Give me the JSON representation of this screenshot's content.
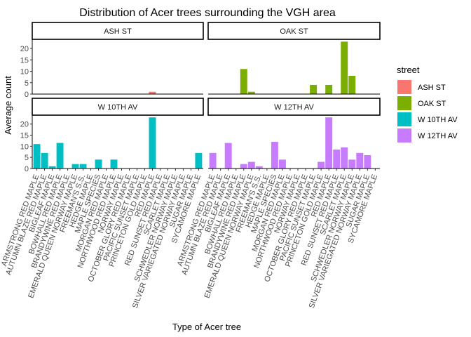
{
  "chart_data": {
    "type": "bar",
    "title": "Distribution of Acer trees surrounding the VGH area",
    "xlabel": "Type of Acer tree",
    "ylabel": "Average count",
    "ylim": [
      0,
      24
    ],
    "yticks": [
      0,
      5,
      10,
      15,
      20
    ],
    "grid": false,
    "legend": {
      "title": "street",
      "placement": "right",
      "entries": [
        {
          "name": "ASH ST",
          "color": "#F8766D"
        },
        {
          "name": "OAK ST",
          "color": "#7CAE00"
        },
        {
          "name": "W 10TH AV",
          "color": "#00BFC4"
        },
        {
          "name": "W 12TH AV",
          "color": "#C77CFF"
        }
      ]
    },
    "categories": [
      "ARMSTRONG RED MAPLE",
      "AUTUMN BLAZE RED MAPLE",
      "BIGLEAF MAPLE",
      "BOWHALL RED MAPLE",
      "BRANDYWINE RED MAPLE",
      "EMERALD QUEEN NORWAY MAPLE",
      "FREEMAN'S S.S.",
      "HEDGE MAPLE",
      "MAPLE SPECIES",
      "MORGAN RED MAPLE",
      "NORTHWOOD RED MAPLE",
      "NORWAY MAPLE",
      "OCTOBER GLORY RED MAPLE",
      "PACIFIC SUNSET MAPLE",
      "PRINCETON GOLD MAPLE",
      "RED MAPLE",
      "RED SUNSET RED MAPLE",
      "SCARLET MAPLE",
      "SCHWEDLER NORWAY MAPLE",
      "SILVER VARIEGATED NORWAY MAPLE",
      "SUGAR MAPLE",
      "SYCAMORE MAPLE"
    ],
    "series": [
      {
        "name": "ASH ST",
        "color": "#F8766D",
        "values": [
          null,
          null,
          null,
          null,
          null,
          null,
          null,
          null,
          null,
          null,
          null,
          null,
          null,
          null,
          null,
          1,
          null,
          null,
          null,
          null,
          null,
          null
        ]
      },
      {
        "name": "OAK ST",
        "color": "#7CAE00",
        "values": [
          null,
          null,
          null,
          null,
          11,
          1,
          null,
          null,
          null,
          null,
          null,
          null,
          null,
          4,
          null,
          4,
          null,
          23,
          8,
          null,
          null,
          null
        ]
      },
      {
        "name": "W 10TH AV",
        "color": "#00BFC4",
        "values": [
          11,
          7,
          1,
          11.5,
          null,
          2,
          2,
          null,
          4,
          null,
          4,
          null,
          null,
          null,
          null,
          23,
          null,
          null,
          null,
          null,
          null,
          7
        ]
      },
      {
        "name": "W 12TH AV",
        "color": "#C77CFF",
        "values": [
          7,
          null,
          11.5,
          null,
          2,
          3,
          1,
          null,
          12,
          4,
          null,
          null,
          null,
          null,
          3,
          23,
          8.5,
          9.5,
          4,
          7,
          6,
          null
        ]
      }
    ]
  }
}
